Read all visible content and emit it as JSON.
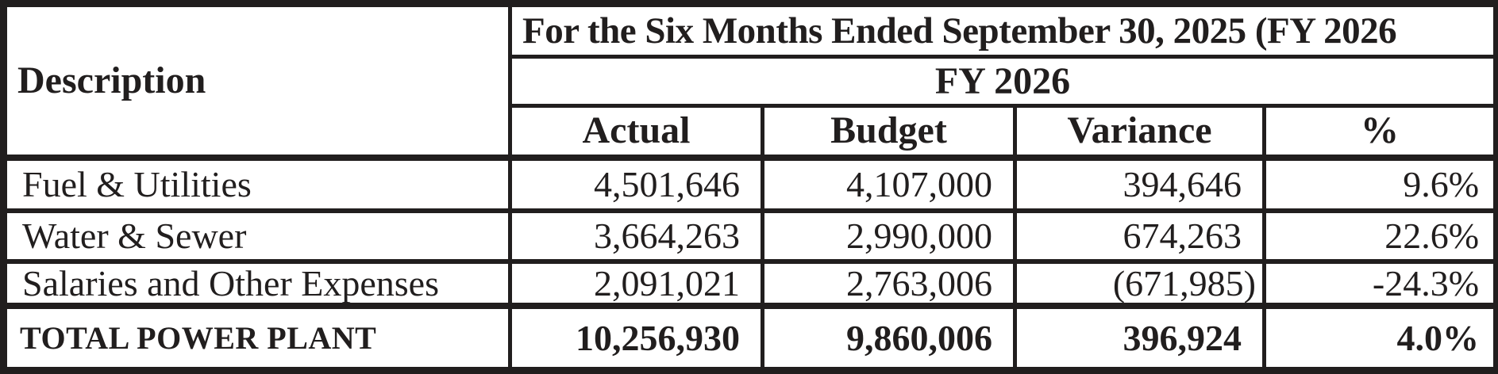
{
  "theme": {
    "ink": "#211e1e",
    "paper": "#ffffff"
  },
  "table": {
    "header": {
      "description_label": "Description",
      "period_title": "For the Six Months Ended September 30, 2025 (FY 2026",
      "fiscal_year": "FY 2026",
      "columns": [
        "Actual",
        "Budget",
        "Variance",
        "%"
      ]
    },
    "rows": [
      {
        "description": "Fuel & Utilities",
        "actual": "4,501,646",
        "budget": "4,107,000",
        "variance": "394,646",
        "percent": "9.6%"
      },
      {
        "description": "Water & Sewer",
        "actual": "3,664,263",
        "budget": "2,990,000",
        "variance": "674,263",
        "percent": "22.6%"
      },
      {
        "description": "Salaries and Other Expenses",
        "actual": "2,091,021",
        "budget": "2,763,006",
        "variance": "(671,985)",
        "percent": "-24.3%"
      }
    ],
    "total": {
      "description": "TOTAL POWER PLANT",
      "actual": "10,256,930",
      "budget": "9,860,006",
      "variance": "396,924",
      "percent": "4.0%"
    }
  }
}
